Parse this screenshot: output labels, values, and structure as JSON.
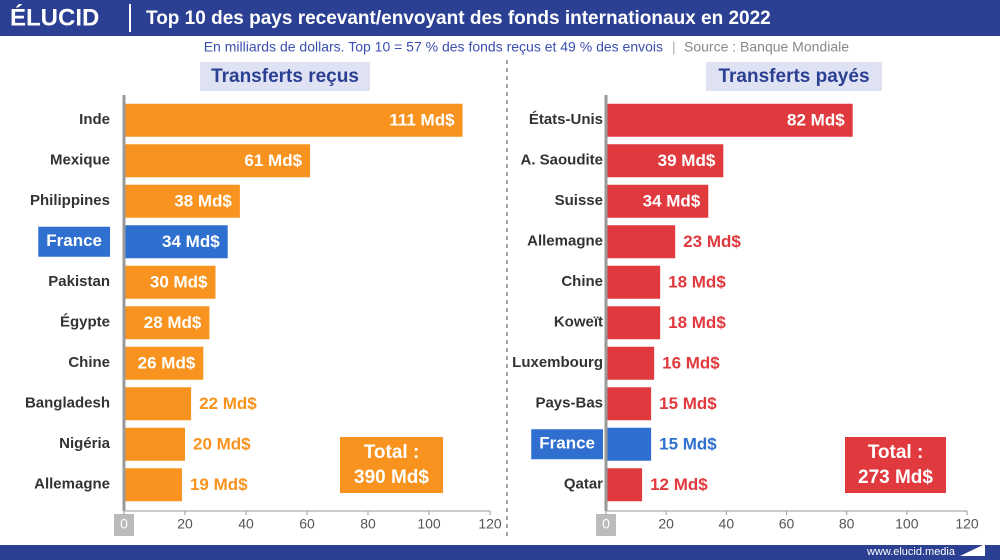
{
  "header": {
    "logo": "ÉLUCID",
    "title": "Top 10 des pays recevant/envoyant des fonds internationaux en 2022",
    "subtitle": "En milliards de dollars. Top 10 = 57 % des fonds reçus et 49 % des envois",
    "source": "Source : Banque Mondiale"
  },
  "footer": {
    "url": "www.elucid.media"
  },
  "chart_data": [
    {
      "type": "bar",
      "orientation": "horizontal",
      "title": "Transferts reçus",
      "categories": [
        "Inde",
        "Mexique",
        "Philippines",
        "France",
        "Pakistan",
        "Égypte",
        "Chine",
        "Bangladesh",
        "Nigéria",
        "Allemagne"
      ],
      "values": [
        111,
        61,
        38,
        34,
        30,
        28,
        26,
        22,
        20,
        19
      ],
      "value_labels": [
        "111 Md$",
        "61 Md$",
        "38 Md$",
        "34 Md$",
        "30 Md$",
        "28 Md$",
        "26 Md$",
        "22 Md$",
        "20 Md$",
        "19 Md$"
      ],
      "color": "#f7931e",
      "colors": [
        "#f7931e",
        "#f7931e",
        "#f7931e",
        "#2f6fcf",
        "#f7931e",
        "#f7931e",
        "#f7931e",
        "#f7931e",
        "#f7931e",
        "#f7931e"
      ],
      "xlim": [
        0,
        120
      ],
      "xticks": [
        0,
        20,
        40,
        60,
        80,
        100,
        120
      ],
      "annotation": [
        "Total :",
        "390 Md$"
      ]
    },
    {
      "type": "bar",
      "orientation": "horizontal",
      "title": "Transferts payés",
      "categories": [
        "États-Unis",
        "A. Saoudite",
        "Suisse",
        "Allemagne",
        "Chine",
        "Koweït",
        "Luxembourg",
        "Pays-Bas",
        "France",
        "Qatar"
      ],
      "values": [
        82,
        39,
        34,
        23,
        18,
        18,
        16,
        15,
        15,
        12
      ],
      "value_labels": [
        "82 Md$",
        "39 Md$",
        "34 Md$",
        "23 Md$",
        "18 Md$",
        "18 Md$",
        "16 Md$",
        "15 Md$",
        "15 Md$",
        "12 Md$"
      ],
      "color": "#e0393e",
      "colors": [
        "#e0393e",
        "#e0393e",
        "#e0393e",
        "#e0393e",
        "#e0393e",
        "#e0393e",
        "#e0393e",
        "#e0393e",
        "#2f6fcf",
        "#e0393e"
      ],
      "xlim": [
        0,
        120
      ],
      "xticks": [
        0,
        20,
        40,
        60,
        80,
        100,
        120
      ],
      "annotation": [
        "Total :",
        "273 Md$"
      ]
    }
  ]
}
